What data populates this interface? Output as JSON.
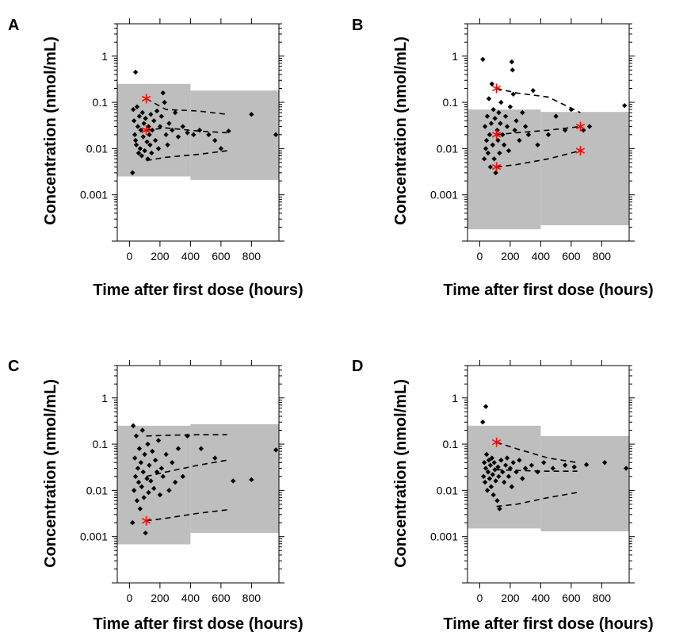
{
  "figure": {
    "shared_xlabel": "Time after first dose (hours)",
    "shared_ylabel": "Concentration (nmol/mL)"
  },
  "chart_data": [
    {
      "panel": "A",
      "type": "scatter",
      "xlabel": "Time after first dose (hours)",
      "ylabel": "Concentration (nmol/mL)",
      "x_ticks": [
        0,
        200,
        400,
        600,
        800
      ],
      "y_ticks": [
        0.001,
        0.01,
        0.1,
        1
      ],
      "y_tick_labels": [
        "0.001",
        "0.01",
        "0.1",
        "1"
      ],
      "y_scale": "log",
      "xlim": [
        -80,
        980
      ],
      "ylim": [
        0.0001,
        5
      ],
      "prediction_interval": [
        {
          "x_start": -80,
          "x_end": 400,
          "low": 0.0025,
          "high": 0.25
        },
        {
          "x_start": 400,
          "x_end": 980,
          "low": 0.0021,
          "high": 0.18
        }
      ],
      "percentile_lines": [
        {
          "points": [
            [
              110,
              0.12
            ],
            [
              240,
              0.07
            ],
            [
              450,
              0.065
            ],
            [
              640,
              0.055
            ]
          ]
        },
        {
          "points": [
            [
              110,
              0.025
            ],
            [
              240,
              0.028
            ],
            [
              450,
              0.024
            ],
            [
              640,
              0.022
            ]
          ]
        },
        {
          "points": [
            [
              110,
              0.0055
            ],
            [
              240,
              0.0065
            ],
            [
              450,
              0.0075
            ],
            [
              640,
              0.009
            ]
          ]
        }
      ],
      "outlier_points": [
        [
          110,
          0.12
        ],
        [
          110,
          0.025
        ]
      ],
      "observed_points": [
        [
          20,
          0.003
        ],
        [
          40,
          0.45
        ],
        [
          25,
          0.07
        ],
        [
          30,
          0.04
        ],
        [
          35,
          0.02
        ],
        [
          40,
          0.015
        ],
        [
          45,
          0.012
        ],
        [
          50,
          0.08
        ],
        [
          55,
          0.03
        ],
        [
          60,
          0.008
        ],
        [
          65,
          0.05
        ],
        [
          70,
          0.01
        ],
        [
          75,
          0.025
        ],
        [
          80,
          0.007
        ],
        [
          85,
          0.06
        ],
        [
          90,
          0.018
        ],
        [
          95,
          0.035
        ],
        [
          100,
          0.009
        ],
        [
          105,
          0.045
        ],
        [
          115,
          0.014
        ],
        [
          120,
          0.006
        ],
        [
          125,
          0.03
        ],
        [
          130,
          0.02
        ],
        [
          135,
          0.012
        ],
        [
          140,
          0.055
        ],
        [
          145,
          0.008
        ],
        [
          150,
          0.025
        ],
        [
          160,
          0.04
        ],
        [
          170,
          0.015
        ],
        [
          180,
          0.065
        ],
        [
          190,
          0.01
        ],
        [
          200,
          0.03
        ],
        [
          210,
          0.05
        ],
        [
          220,
          0.16
        ],
        [
          230,
          0.1
        ],
        [
          240,
          0.02
        ],
        [
          250,
          0.012
        ],
        [
          260,
          0.035
        ],
        [
          280,
          0.025
        ],
        [
          300,
          0.06
        ],
        [
          320,
          0.018
        ],
        [
          350,
          0.03
        ],
        [
          380,
          0.022
        ],
        [
          420,
          0.02
        ],
        [
          460,
          0.025
        ],
        [
          520,
          0.02
        ],
        [
          560,
          0.015
        ],
        [
          600,
          0.01
        ],
        [
          650,
          0.024
        ],
        [
          800,
          0.055
        ],
        [
          960,
          0.02
        ]
      ]
    },
    {
      "panel": "B",
      "type": "scatter",
      "xlabel": "Time after first dose (hours)",
      "ylabel": "Concentration (nmol/mL)",
      "x_ticks": [
        0,
        200,
        400,
        600,
        800
      ],
      "y_ticks": [
        0.001,
        0.01,
        0.1,
        1
      ],
      "y_tick_labels": [
        "0.001",
        "0.01",
        "0.1",
        "1"
      ],
      "y_scale": "log",
      "xlim": [
        -80,
        980
      ],
      "ylim": [
        0.0001,
        5
      ],
      "prediction_interval": [
        {
          "x_start": -80,
          "x_end": 400,
          "low": 0.00018,
          "high": 0.07
        },
        {
          "x_start": 400,
          "x_end": 980,
          "low": 0.00022,
          "high": 0.062
        }
      ],
      "percentile_lines": [
        {
          "points": [
            [
              110,
              0.2
            ],
            [
              240,
              0.16
            ],
            [
              450,
              0.13
            ],
            [
              660,
              0.06
            ]
          ]
        },
        {
          "points": [
            [
              110,
              0.02
            ],
            [
              240,
              0.022
            ],
            [
              450,
              0.025
            ],
            [
              660,
              0.03
            ]
          ]
        },
        {
          "points": [
            [
              110,
              0.004
            ],
            [
              240,
              0.0045
            ],
            [
              450,
              0.006
            ],
            [
              660,
              0.009
            ]
          ]
        }
      ],
      "outlier_points": [
        [
          110,
          0.2
        ],
        [
          110,
          0.02
        ],
        [
          110,
          0.004
        ],
        [
          660,
          0.03
        ],
        [
          660,
          0.009
        ]
      ],
      "observed_points": [
        [
          20,
          0.85
        ],
        [
          30,
          0.006
        ],
        [
          35,
          0.03
        ],
        [
          40,
          0.01
        ],
        [
          45,
          0.015
        ],
        [
          50,
          0.05
        ],
        [
          55,
          0.008
        ],
        [
          60,
          0.12
        ],
        [
          65,
          0.02
        ],
        [
          70,
          0.004
        ],
        [
          75,
          0.035
        ],
        [
          80,
          0.25
        ],
        [
          85,
          0.012
        ],
        [
          90,
          0.07
        ],
        [
          95,
          0.006
        ],
        [
          100,
          0.045
        ],
        [
          105,
          0.003
        ],
        [
          115,
          0.025
        ],
        [
          120,
          0.015
        ],
        [
          125,
          0.06
        ],
        [
          130,
          0.008
        ],
        [
          135,
          0.035
        ],
        [
          140,
          0.1
        ],
        [
          150,
          0.02
        ],
        [
          160,
          0.012
        ],
        [
          170,
          0.05
        ],
        [
          180,
          0.03
        ],
        [
          190,
          0.009
        ],
        [
          200,
          0.08
        ],
        [
          210,
          0.75
        ],
        [
          215,
          0.5
        ],
        [
          220,
          0.15
        ],
        [
          230,
          0.025
        ],
        [
          240,
          0.04
        ],
        [
          260,
          0.015
        ],
        [
          280,
          0.06
        ],
        [
          300,
          0.03
        ],
        [
          320,
          0.02
        ],
        [
          350,
          0.18
        ],
        [
          380,
          0.012
        ],
        [
          450,
          0.02
        ],
        [
          500,
          0.05
        ],
        [
          560,
          0.025
        ],
        [
          600,
          0.07
        ],
        [
          680,
          0.025
        ],
        [
          720,
          0.03
        ],
        [
          950,
          0.085
        ]
      ]
    },
    {
      "panel": "C",
      "type": "scatter",
      "xlabel": "Time after first dose (hours)",
      "ylabel": "Concentration (nmol/mL)",
      "x_ticks": [
        0,
        200,
        400,
        600,
        800
      ],
      "y_ticks": [
        0.001,
        0.01,
        0.1,
        1
      ],
      "y_tick_labels": [
        "0.001",
        "0.01",
        "0.1",
        "1"
      ],
      "y_scale": "log",
      "xlim": [
        -80,
        980
      ],
      "ylim": [
        0.0001,
        5
      ],
      "prediction_interval": [
        {
          "x_start": -80,
          "x_end": 400,
          "low": 0.00068,
          "high": 0.25
        },
        {
          "x_start": 400,
          "x_end": 980,
          "low": 0.0012,
          "high": 0.27
        }
      ],
      "percentile_lines": [
        {
          "points": [
            [
              110,
              0.15
            ],
            [
              240,
              0.155
            ],
            [
              450,
              0.16
            ],
            [
              640,
              0.16
            ]
          ]
        },
        {
          "points": [
            [
              110,
              0.02
            ],
            [
              240,
              0.025
            ],
            [
              450,
              0.035
            ],
            [
              640,
              0.045
            ]
          ]
        },
        {
          "points": [
            [
              110,
              0.0022
            ],
            [
              240,
              0.0025
            ],
            [
              450,
              0.0032
            ],
            [
              640,
              0.0038
            ]
          ]
        }
      ],
      "outlier_points": [
        [
          110,
          0.0022
        ]
      ],
      "observed_points": [
        [
          20,
          0.002
        ],
        [
          25,
          0.25
        ],
        [
          30,
          0.01
        ],
        [
          35,
          0.05
        ],
        [
          40,
          0.02
        ],
        [
          45,
          0.15
        ],
        [
          50,
          0.006
        ],
        [
          55,
          0.03
        ],
        [
          60,
          0.015
        ],
        [
          65,
          0.08
        ],
        [
          70,
          0.004
        ],
        [
          75,
          0.04
        ],
        [
          80,
          0.012
        ],
        [
          85,
          0.2
        ],
        [
          90,
          0.025
        ],
        [
          95,
          0.007
        ],
        [
          100,
          0.06
        ],
        [
          105,
          0.0012
        ],
        [
          115,
          0.018
        ],
        [
          120,
          0.1
        ],
        [
          125,
          0.009
        ],
        [
          130,
          0.035
        ],
        [
          140,
          0.016
        ],
        [
          150,
          0.07
        ],
        [
          160,
          0.011
        ],
        [
          170,
          0.045
        ],
        [
          180,
          0.025
        ],
        [
          190,
          0.12
        ],
        [
          200,
          0.008
        ],
        [
          210,
          0.03
        ],
        [
          220,
          0.02
        ],
        [
          240,
          0.06
        ],
        [
          260,
          0.01
        ],
        [
          280,
          0.04
        ],
        [
          300,
          0.015
        ],
        [
          320,
          0.08
        ],
        [
          350,
          0.02
        ],
        [
          380,
          0.15
        ],
        [
          470,
          0.08
        ],
        [
          560,
          0.05
        ],
        [
          680,
          0.016
        ],
        [
          800,
          0.017
        ],
        [
          960,
          0.075
        ]
      ]
    },
    {
      "panel": "D",
      "type": "scatter",
      "xlabel": "Time after first dose (hours)",
      "ylabel": "Concentration (nmol/mL)",
      "x_ticks": [
        0,
        200,
        400,
        600,
        800
      ],
      "y_ticks": [
        0.001,
        0.01,
        0.1,
        1
      ],
      "y_tick_labels": [
        "0.001",
        "0.01",
        "0.1",
        "1"
      ],
      "y_scale": "log",
      "xlim": [
        -80,
        980
      ],
      "ylim": [
        0.0001,
        5
      ],
      "prediction_interval": [
        {
          "x_start": -80,
          "x_end": 400,
          "low": 0.0015,
          "high": 0.25
        },
        {
          "x_start": 400,
          "x_end": 980,
          "low": 0.0013,
          "high": 0.15
        }
      ],
      "percentile_lines": [
        {
          "points": [
            [
              110,
              0.11
            ],
            [
              240,
              0.08
            ],
            [
              450,
              0.05
            ],
            [
              640,
              0.04
            ]
          ]
        },
        {
          "points": [
            [
              110,
              0.028
            ],
            [
              240,
              0.027
            ],
            [
              450,
              0.026
            ],
            [
              640,
              0.026
            ]
          ]
        },
        {
          "points": [
            [
              110,
              0.0045
            ],
            [
              240,
              0.005
            ],
            [
              450,
              0.007
            ],
            [
              640,
              0.009
            ]
          ]
        }
      ],
      "outlier_points": [
        [
          110,
          0.11
        ]
      ],
      "observed_points": [
        [
          20,
          0.3
        ],
        [
          40,
          0.65
        ],
        [
          25,
          0.02
        ],
        [
          30,
          0.04
        ],
        [
          35,
          0.015
        ],
        [
          40,
          0.03
        ],
        [
          45,
          0.06
        ],
        [
          50,
          0.01
        ],
        [
          55,
          0.025
        ],
        [
          60,
          0.045
        ],
        [
          65,
          0.018
        ],
        [
          70,
          0.035
        ],
        [
          75,
          0.012
        ],
        [
          80,
          0.05
        ],
        [
          85,
          0.022
        ],
        [
          90,
          0.008
        ],
        [
          95,
          0.04
        ],
        [
          100,
          0.028
        ],
        [
          105,
          0.016
        ],
        [
          115,
          0.006
        ],
        [
          120,
          0.032
        ],
        [
          125,
          0.02
        ],
        [
          130,
          0.004
        ],
        [
          140,
          0.045
        ],
        [
          150,
          0.025
        ],
        [
          160,
          0.015
        ],
        [
          170,
          0.035
        ],
        [
          180,
          0.05
        ],
        [
          190,
          0.02
        ],
        [
          200,
          0.03
        ],
        [
          210,
          0.012
        ],
        [
          220,
          0.04
        ],
        [
          240,
          0.025
        ],
        [
          260,
          0.045
        ],
        [
          280,
          0.018
        ],
        [
          300,
          0.03
        ],
        [
          340,
          0.035
        ],
        [
          380,
          0.025
        ],
        [
          420,
          0.04
        ],
        [
          480,
          0.03
        ],
        [
          560,
          0.035
        ],
        [
          620,
          0.032
        ],
        [
          700,
          0.036
        ],
        [
          820,
          0.04
        ],
        [
          960,
          0.03
        ]
      ]
    }
  ]
}
